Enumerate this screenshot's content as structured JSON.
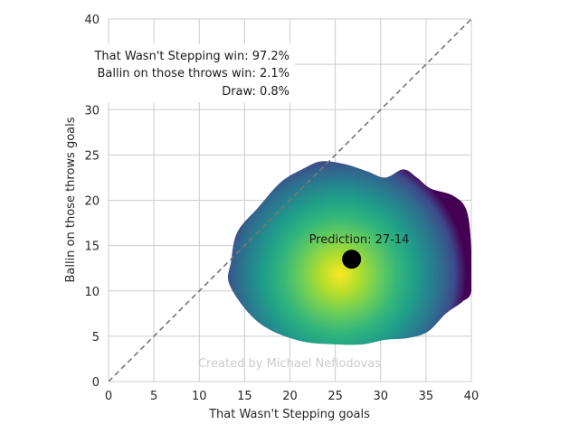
{
  "chart_data": {
    "type": "heatmap",
    "title": "",
    "xlabel": "That Wasn't Stepping goals",
    "ylabel": "Ballin on those throws goals",
    "xlim": [
      0,
      40
    ],
    "ylim": [
      0,
      40
    ],
    "xticks": [
      0,
      5,
      10,
      15,
      20,
      25,
      30,
      35,
      40
    ],
    "yticks": [
      0,
      5,
      10,
      15,
      20,
      25,
      30,
      35,
      40
    ],
    "grid": true,
    "colormap": "viridis",
    "diagonal_line": {
      "from": [
        0,
        0
      ],
      "to": [
        40,
        40
      ],
      "style": "dashed",
      "color": "#777777"
    },
    "density_region_outline": [
      [
        13.5,
        13.2
      ],
      [
        14.2,
        16.5
      ],
      [
        16.5,
        19.2
      ],
      [
        19.0,
        22.0
      ],
      [
        21.5,
        23.5
      ],
      [
        23.5,
        24.3
      ],
      [
        26.0,
        24.0
      ],
      [
        28.5,
        23.2
      ],
      [
        30.5,
        22.5
      ],
      [
        32.5,
        23.4
      ],
      [
        34.0,
        22.5
      ],
      [
        35.5,
        21.3
      ],
      [
        38.0,
        20.5
      ],
      [
        39.5,
        18.8
      ],
      [
        40.0,
        14.5
      ],
      [
        40.0,
        10.0
      ],
      [
        39.0,
        8.8
      ],
      [
        37.2,
        7.5
      ],
      [
        35.2,
        5.5
      ],
      [
        33.0,
        4.8
      ],
      [
        30.5,
        4.6
      ],
      [
        28.0,
        4.1
      ],
      [
        25.0,
        4.1
      ],
      [
        21.5,
        4.4
      ],
      [
        18.0,
        5.6
      ],
      [
        15.5,
        7.5
      ],
      [
        13.3,
        10.8
      ]
    ],
    "density_peak": {
      "x": 25.5,
      "y": 11.8
    },
    "prediction_point": {
      "x": 26.8,
      "y": 13.5,
      "color": "#000000"
    },
    "annotations": {
      "prediction": "Prediction: 27-14",
      "home_win": "That Wasn't Stepping win: 97.2%",
      "away_win": "Ballin on those throws win: 2.1%",
      "draw": "Draw: 0.8%",
      "credit": "Created by Michael Nefiodovas"
    }
  }
}
